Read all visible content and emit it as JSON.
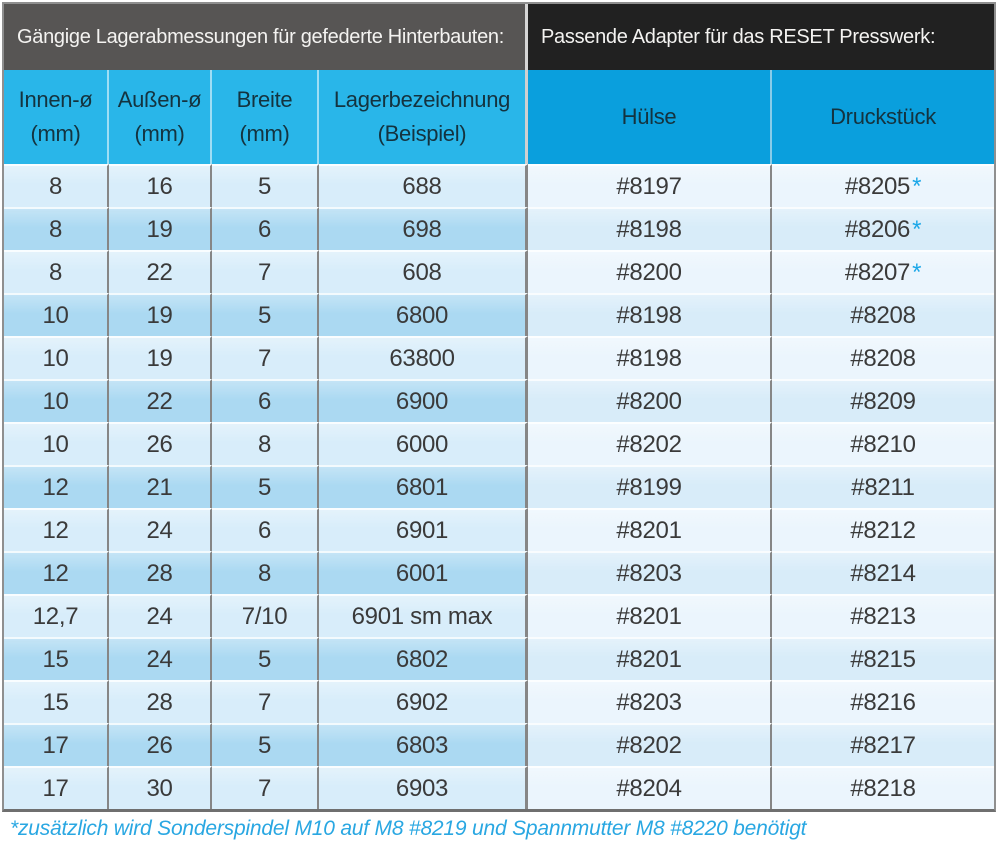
{
  "chart_data": {
    "type": "table",
    "section_headers": {
      "left": "Gängige Lagerabmessungen für gefederte Hinterbauten:",
      "right": "Passende Adapter für das RESET Presswerk:"
    },
    "columns": [
      {
        "label": "Innen-ø",
        "sub": "(mm)"
      },
      {
        "label": "Außen-ø",
        "sub": "(mm)"
      },
      {
        "label": "Breite",
        "sub": "(mm)"
      },
      {
        "label": "Lagerbezeichnung",
        "sub": "(Beispiel)"
      },
      {
        "label": "Hülse",
        "sub": ""
      },
      {
        "label": "Druckstück",
        "sub": ""
      }
    ],
    "rows": [
      {
        "innen": "8",
        "aussen": "16",
        "breite": "5",
        "bezeichnung": "688",
        "huelse": "#8197",
        "druckstueck": "#8205",
        "asterisk": true
      },
      {
        "innen": "8",
        "aussen": "19",
        "breite": "6",
        "bezeichnung": "698",
        "huelse": "#8198",
        "druckstueck": "#8206",
        "asterisk": true
      },
      {
        "innen": "8",
        "aussen": "22",
        "breite": "7",
        "bezeichnung": "608",
        "huelse": "#8200",
        "druckstueck": "#8207",
        "asterisk": true
      },
      {
        "innen": "10",
        "aussen": "19",
        "breite": "5",
        "bezeichnung": "6800",
        "huelse": "#8198",
        "druckstueck": "#8208",
        "asterisk": false
      },
      {
        "innen": "10",
        "aussen": "19",
        "breite": "7",
        "bezeichnung": "63800",
        "huelse": "#8198",
        "druckstueck": "#8208",
        "asterisk": false
      },
      {
        "innen": "10",
        "aussen": "22",
        "breite": "6",
        "bezeichnung": "6900",
        "huelse": "#8200",
        "druckstueck": "#8209",
        "asterisk": false
      },
      {
        "innen": "10",
        "aussen": "26",
        "breite": "8",
        "bezeichnung": "6000",
        "huelse": "#8202",
        "druckstueck": "#8210",
        "asterisk": false
      },
      {
        "innen": "12",
        "aussen": "21",
        "breite": "5",
        "bezeichnung": "6801",
        "huelse": "#8199",
        "druckstueck": "#8211",
        "asterisk": false
      },
      {
        "innen": "12",
        "aussen": "24",
        "breite": "6",
        "bezeichnung": "6901",
        "huelse": "#8201",
        "druckstueck": "#8212",
        "asterisk": false
      },
      {
        "innen": "12",
        "aussen": "28",
        "breite": "8",
        "bezeichnung": "6001",
        "huelse": "#8203",
        "druckstueck": "#8214",
        "asterisk": false
      },
      {
        "innen": "12,7",
        "aussen": "24",
        "breite": "7/10",
        "bezeichnung": "6901 sm max",
        "huelse": "#8201",
        "druckstueck": "#8213",
        "asterisk": false
      },
      {
        "innen": "15",
        "aussen": "24",
        "breite": "5",
        "bezeichnung": "6802",
        "huelse": "#8201",
        "druckstueck": "#8215",
        "asterisk": false
      },
      {
        "innen": "15",
        "aussen": "28",
        "breite": "7",
        "bezeichnung": "6902",
        "huelse": "#8203",
        "druckstueck": "#8216",
        "asterisk": false
      },
      {
        "innen": "17",
        "aussen": "26",
        "breite": "5",
        "bezeichnung": "6803",
        "huelse": "#8202",
        "druckstueck": "#8217",
        "asterisk": false
      },
      {
        "innen": "17",
        "aussen": "30",
        "breite": "7",
        "bezeichnung": "6903",
        "huelse": "#8204",
        "druckstueck": "#8218",
        "asterisk": false
      }
    ],
    "footnote": "*zusätzlich wird Sonderspindel M10 auf M8 #8219 und Spannmutter M8 #8220 benötigt",
    "layout_hint": "left 4 columns = bearing dimensions table, right 2 columns = adapter table"
  },
  "colors": {
    "section_header_left_bg": "#575554",
    "section_header_right_bg": "#212121",
    "column_header_left_bg": "#29b6e9",
    "column_header_right_bg": "#0a9fdd",
    "row_light_left": "#d8edfa",
    "row_dark_left": "#abd9f2",
    "row_light_right": "#ebf5fd",
    "row_dark_right": "#d8ecf9",
    "asterisk": "#1ba7e8",
    "footnote": "#29a7e2",
    "data_text": "#3a3a3a"
  }
}
